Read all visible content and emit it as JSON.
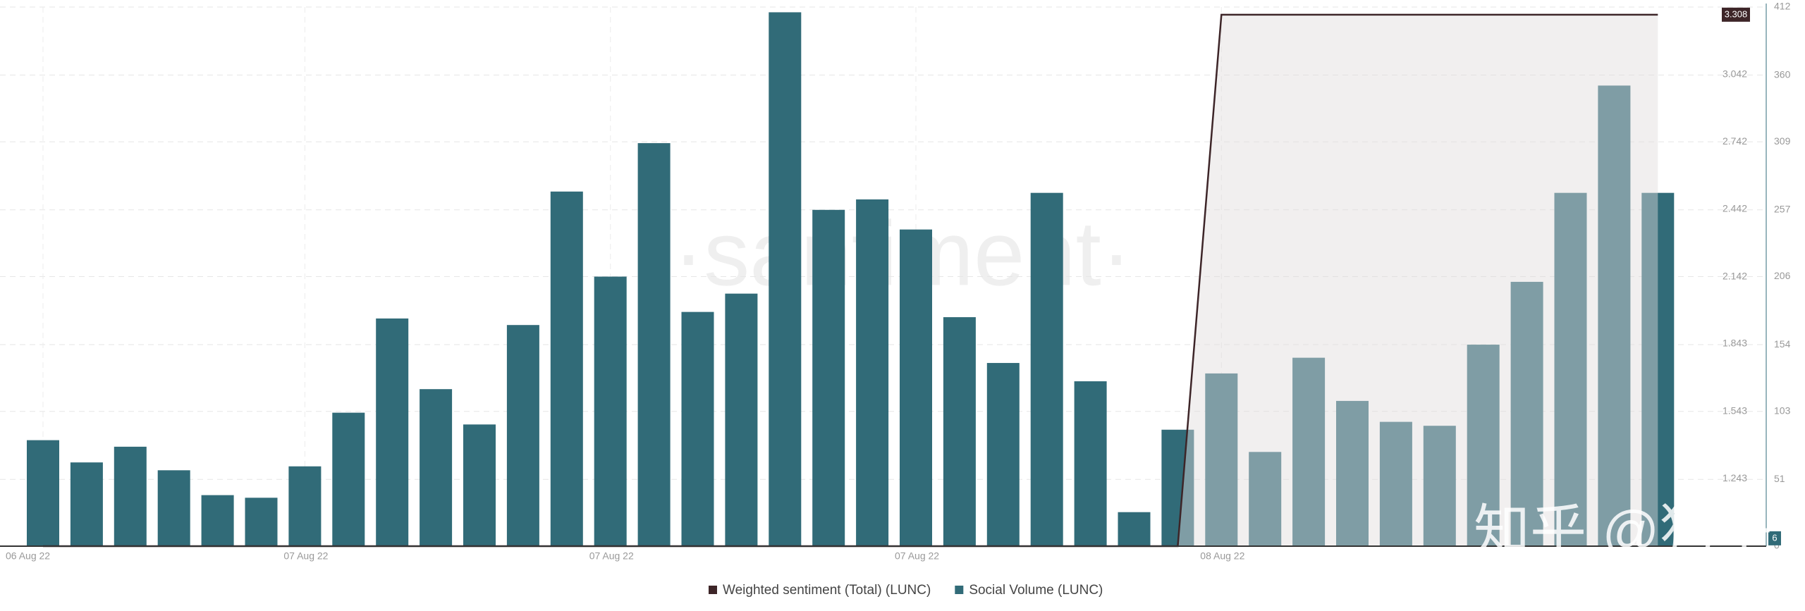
{
  "chart_data": {
    "type": "bar_line",
    "categories": [
      "06 Aug 22",
      null,
      null,
      null,
      null,
      null,
      "07 Aug 22",
      null,
      null,
      null,
      null,
      null,
      null,
      "07 Aug 22",
      null,
      null,
      null,
      null,
      null,
      null,
      "07 Aug 22",
      null,
      null,
      null,
      null,
      null,
      null,
      "08 Aug 22",
      null,
      null,
      null,
      null,
      null,
      null,
      null,
      null,
      null,
      null
    ],
    "series": [
      {
        "name": "Weighted sentiment (Total) (LUNC)",
        "color": "#3d2528",
        "axis": "y",
        "area_color": "#e0dbdb",
        "values": [
          0.943,
          0.943,
          0.943,
          0.943,
          0.943,
          0.943,
          0.943,
          0.943,
          0.943,
          0.943,
          0.943,
          0.943,
          0.943,
          0.943,
          0.943,
          0.943,
          0.943,
          0.943,
          0.943,
          0.943,
          0.943,
          0.943,
          0.943,
          0.943,
          0.943,
          0.943,
          0.943,
          3.308,
          3.308,
          3.308,
          3.308,
          3.308,
          3.308,
          3.308,
          3.308,
          3.308,
          3.308,
          3.308
        ]
      },
      {
        "name": "Social Volume (LUNC)",
        "color": "#316b78",
        "axis": "y2",
        "current_value": 6,
        "values": [
          81,
          64,
          76,
          58,
          39,
          37,
          61,
          102,
          174,
          120,
          93,
          169,
          271,
          206,
          308,
          179,
          193,
          408,
          257,
          265,
          242,
          175,
          140,
          270,
          126,
          26,
          89,
          132,
          72,
          144,
          111,
          95,
          92,
          154,
          202,
          270,
          352,
          270
        ]
      }
    ],
    "ylim": [
      0.943,
      3.342
    ],
    "yticks": [
      1.243,
      1.543,
      1.843,
      2.142,
      2.442,
      2.742,
      3.042
    ],
    "y2lim": [
      0,
      412
    ],
    "y2ticks": [
      0,
      51,
      103,
      154,
      206,
      257,
      309,
      360,
      412
    ],
    "grid": true,
    "legend": "bottom",
    "watermarks": [
      "·santiment·",
      "知乎 @狗子"
    ]
  }
}
